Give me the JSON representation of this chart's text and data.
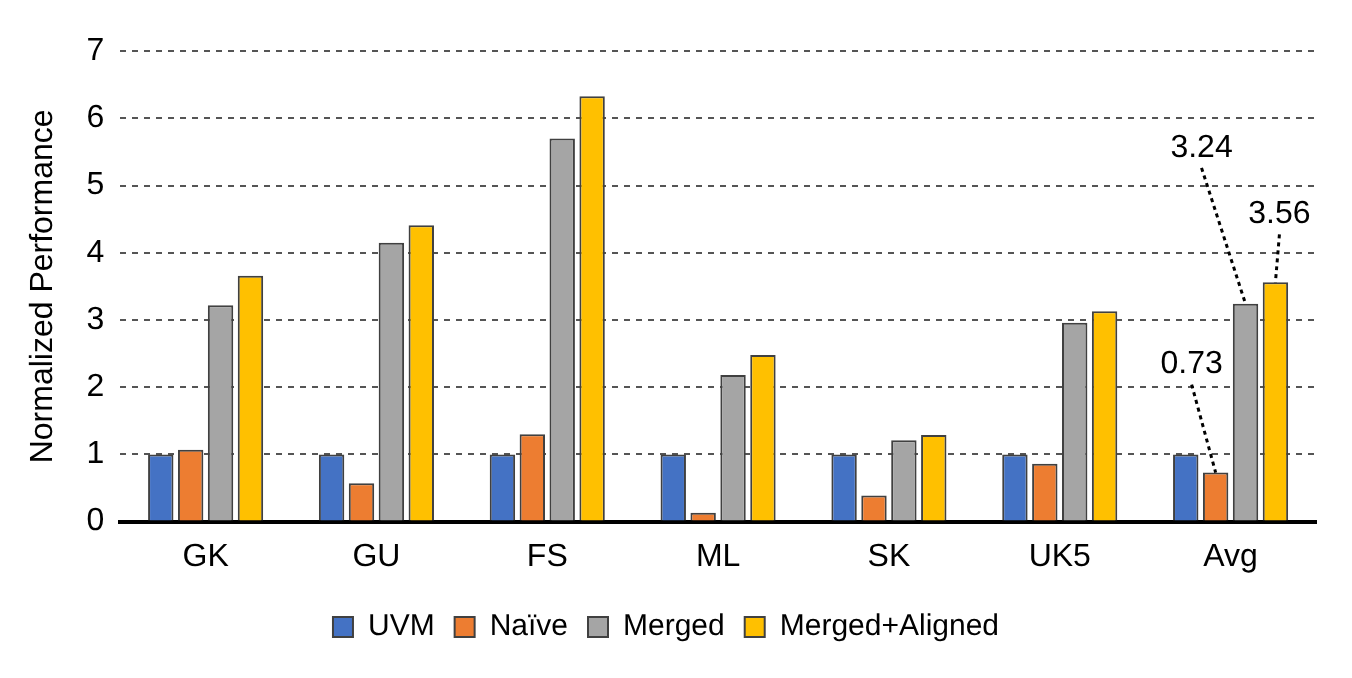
{
  "chart_data": {
    "type": "bar",
    "ylabel": "Normalized Performance",
    "categories": [
      "GK",
      "GU",
      "FS",
      "ML",
      "SK",
      "UK5",
      "Avg"
    ],
    "series": [
      {
        "name": "UVM",
        "color": "#4472c4",
        "values": [
          1,
          1,
          1,
          1,
          1,
          1,
          1
        ]
      },
      {
        "name": "Naïve",
        "color": "#ed7d31",
        "values": [
          1.07,
          0.57,
          1.3,
          0.13,
          0.39,
          0.86,
          0.73
        ],
        "value_labels": [
          null,
          null,
          null,
          null,
          null,
          null,
          "0.73"
        ]
      },
      {
        "name": "Merged",
        "color": "#a5a5a5",
        "values": [
          3.22,
          4.15,
          5.7,
          2.18,
          1.21,
          2.96,
          3.24
        ],
        "value_labels": [
          null,
          null,
          null,
          null,
          null,
          null,
          "3.24"
        ]
      },
      {
        "name": "Merged+Aligned",
        "color": "#ffc000",
        "values": [
          3.66,
          4.41,
          6.33,
          2.48,
          1.29,
          3.13,
          3.56
        ],
        "value_labels": [
          null,
          null,
          null,
          null,
          null,
          null,
          "3.56"
        ]
      }
    ],
    "ylim": [
      0,
      7
    ],
    "yticks": [
      0,
      1,
      2,
      3,
      4,
      5,
      6,
      7
    ],
    "grid": "y",
    "legend": "bottom"
  }
}
